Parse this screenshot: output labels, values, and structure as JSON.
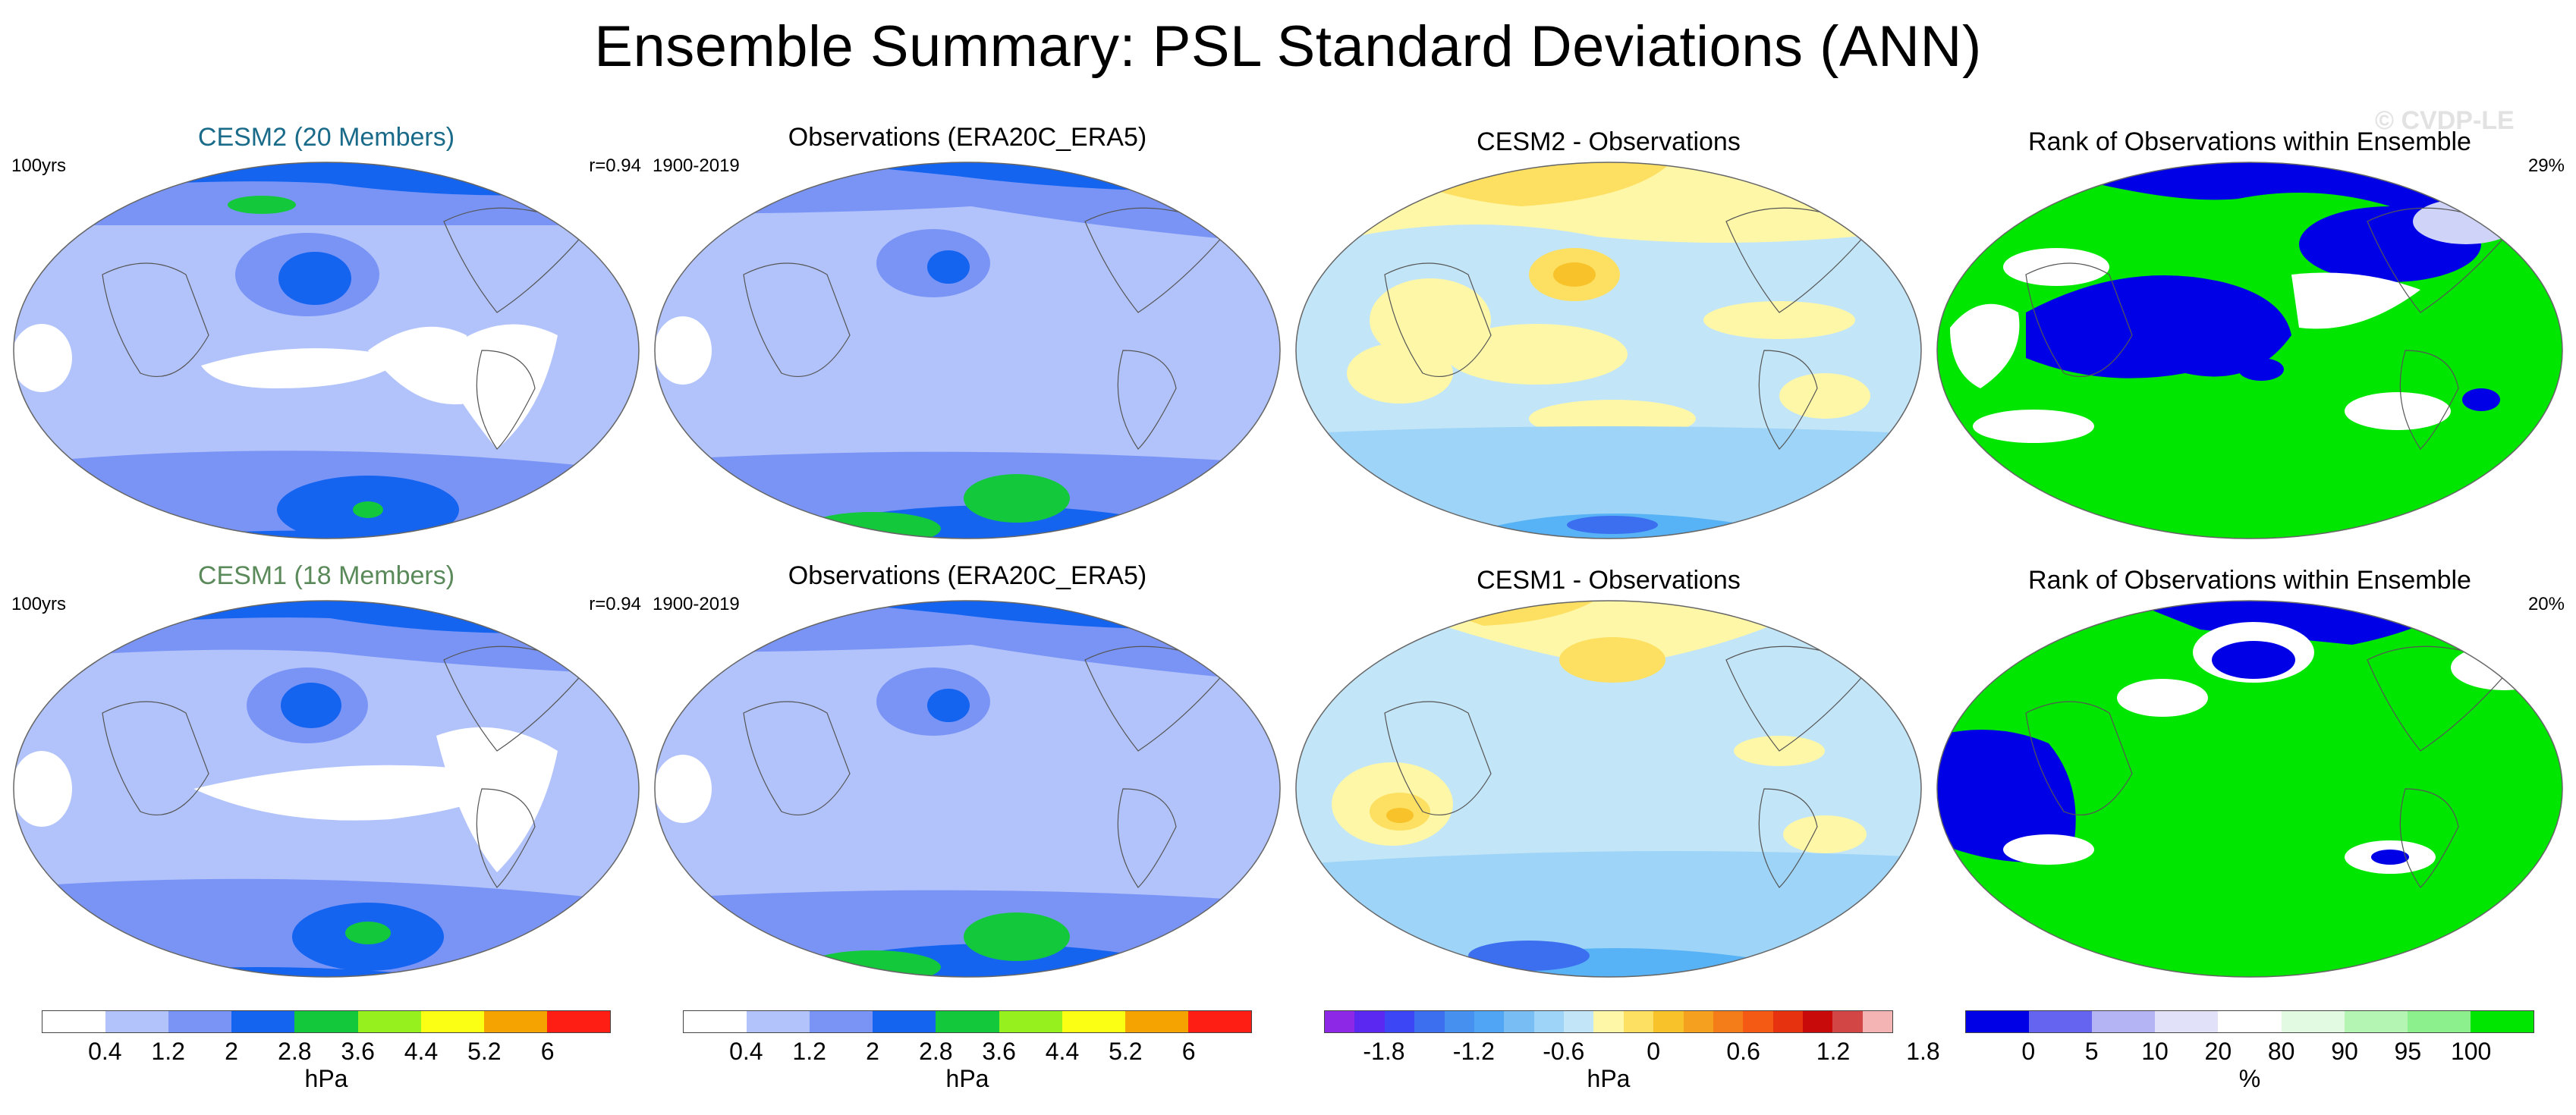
{
  "title": "Ensemble Summary: PSL Standard Deviations (ANN)",
  "watermark": "© CVDP-LE",
  "colors": {
    "sd_white": "#ffffff",
    "sd_lightblue": "#b2c3fb",
    "sd_blue": "#7a94f6",
    "sd_darkblue": "#1464f0",
    "sd_green": "#14c83c",
    "diff_lightyellow": "#fef7a8",
    "diff_yellow": "#fde062",
    "diff_orange": "#f8c22a",
    "diff_lightcyan": "#c3e5f8",
    "diff_cyan": "#9dd4f7",
    "diff_blue": "#57b3f5",
    "rank_blue": "#0000e6",
    "rank_green": "#00e600",
    "rank_lavender": "#cfd3f7",
    "coast": "#555555"
  },
  "rows": [
    {
      "model": {
        "title": "CESM2 (20 Members)",
        "title_color": "#1a6b8a",
        "left_label": "100yrs",
        "right_label": "r=0.94"
      },
      "observations": {
        "title": "Observations (ERA20C_ERA5)",
        "left_label": "1900-2019"
      },
      "difference": {
        "title": "CESM2 - Observations"
      },
      "rank": {
        "title": "Rank of Observations within Ensemble",
        "right_label": "29%"
      }
    },
    {
      "model": {
        "title": "CESM1 (18 Members)",
        "title_color": "#5a8a5a",
        "left_label": "100yrs",
        "right_label": "r=0.94"
      },
      "observations": {
        "title": "Observations (ERA20C_ERA5)",
        "left_label": "1900-2019"
      },
      "difference": {
        "title": "CESM1 - Observations"
      },
      "rank": {
        "title": "Rank of Observations within Ensemble",
        "right_label": "20%"
      }
    }
  ],
  "colorbars": [
    {
      "colors": [
        "#ffffff",
        "#b2c3fb",
        "#7a94f6",
        "#1464f0",
        "#14c83c",
        "#96f01e",
        "#faff14",
        "#f5a300",
        "#ff1e14"
      ],
      "ticks": [
        "0.4",
        "1.2",
        "2",
        "2.8",
        "3.6",
        "4.4",
        "5.2",
        "6"
      ],
      "unit": "hPa"
    },
    {
      "colors": [
        "#ffffff",
        "#b2c3fb",
        "#7a94f6",
        "#1464f0",
        "#14c83c",
        "#96f01e",
        "#faff14",
        "#f5a300",
        "#ff1e14"
      ],
      "ticks": [
        "0.4",
        "1.2",
        "2",
        "2.8",
        "3.6",
        "4.4",
        "5.2",
        "6"
      ],
      "unit": "hPa"
    },
    {
      "colors": [
        "#8c28e6",
        "#5a28f0",
        "#3c46f5",
        "#3c6ef0",
        "#4690f0",
        "#50a5f5",
        "#78bef5",
        "#9dd4f7",
        "#c3e5f8",
        "#fef7a8",
        "#fde062",
        "#f8c22a",
        "#f5a01e",
        "#f57d19",
        "#f55a14",
        "#e6320f",
        "#c80a0a",
        "#d24646",
        "#f5b4b4"
      ],
      "ticks": [
        "-1.8",
        "-1.2",
        "-0.6",
        "0",
        "0.6",
        "1.2",
        "1.8"
      ],
      "unit": "hPa"
    },
    {
      "colors": [
        "#0000e6",
        "#6464f0",
        "#b4b4f5",
        "#e1e1fa",
        "#ffffff",
        "#e1fae1",
        "#b4f5b4",
        "#8cf08c",
        "#00e600"
      ],
      "ticks": [
        "0",
        "5",
        "10",
        "20",
        "80",
        "90",
        "95",
        "100"
      ],
      "unit": "%"
    }
  ]
}
